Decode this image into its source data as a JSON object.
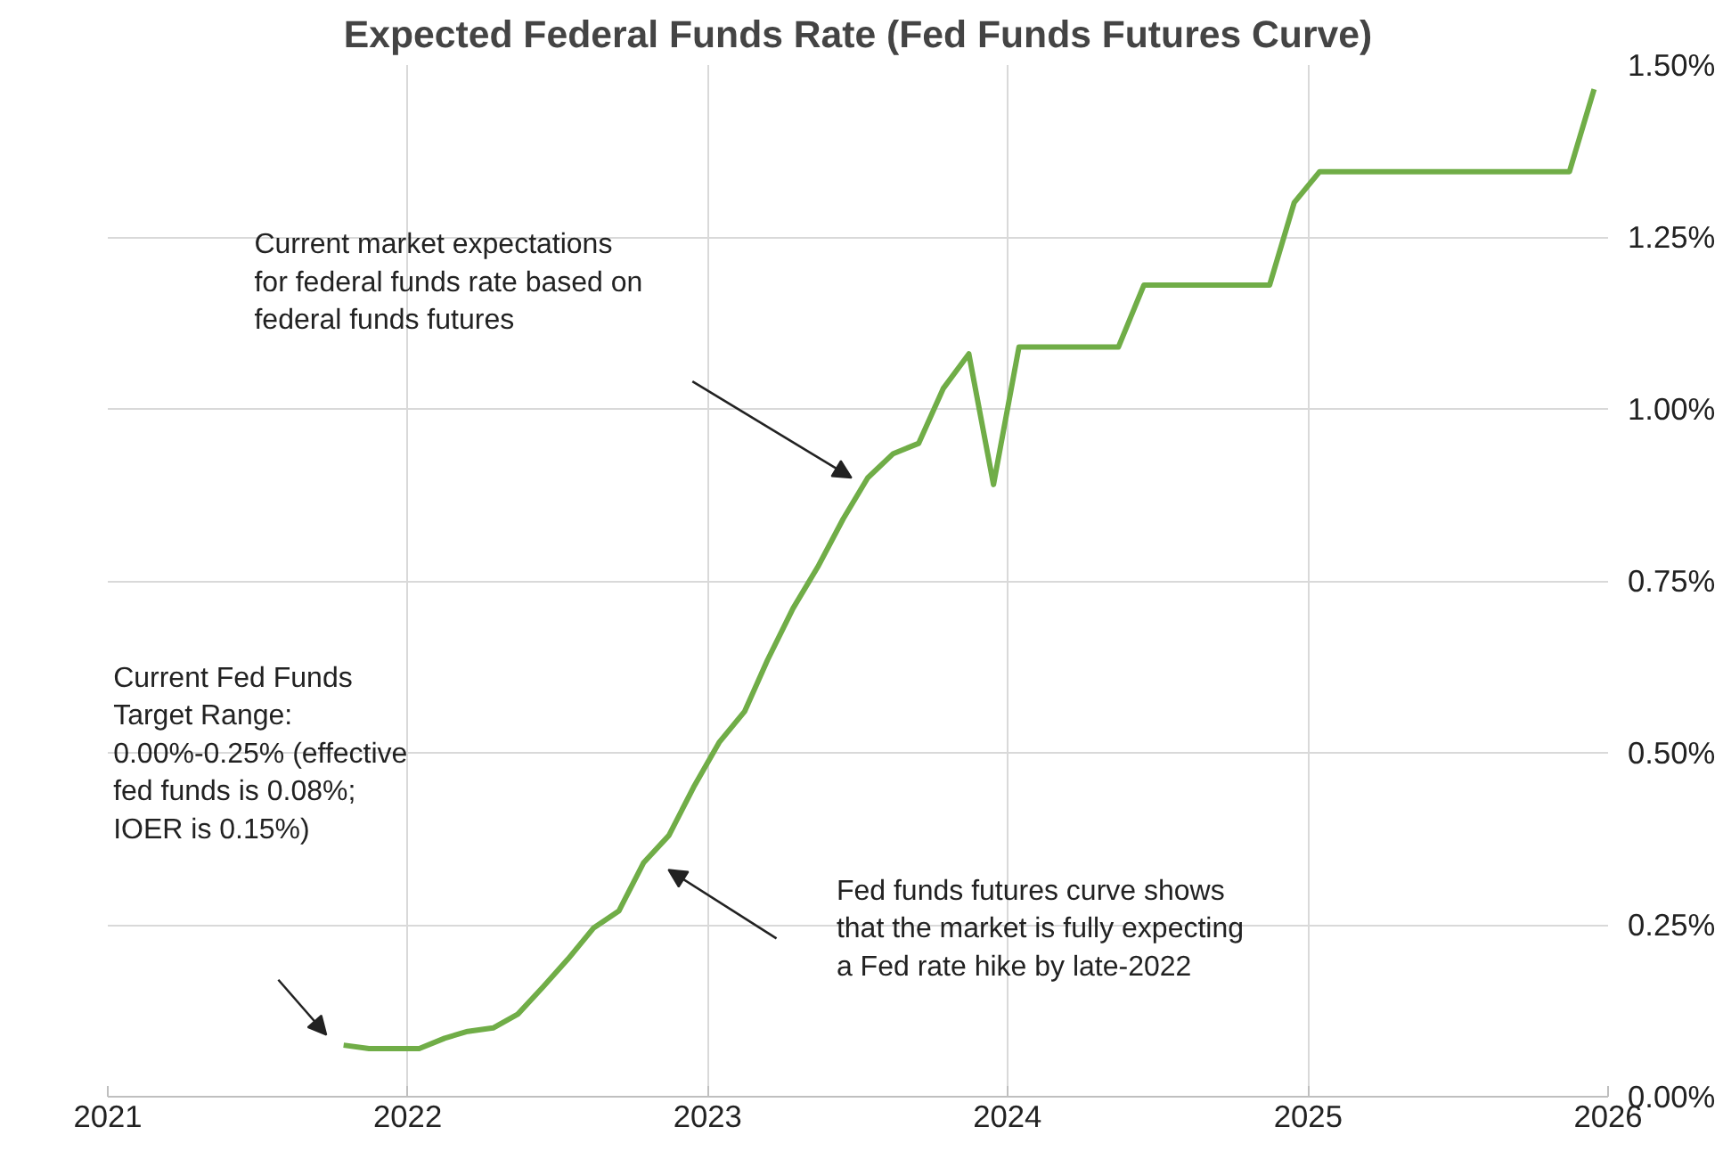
{
  "chart_data": {
    "type": "line",
    "title": "Expected Federal Funds Rate (Fed Funds Futures Curve)",
    "x": [
      "2021-10-15",
      "2021-11-15",
      "2021-12-15",
      "2022-01-15",
      "2022-02-15",
      "2022-03-15",
      "2022-04-15",
      "2022-05-15",
      "2022-06-15",
      "2022-07-15",
      "2022-08-15",
      "2022-09-15",
      "2022-10-15",
      "2022-11-15",
      "2022-12-15",
      "2023-01-15",
      "2023-02-15",
      "2023-03-15",
      "2023-04-15",
      "2023-05-15",
      "2023-06-15",
      "2023-07-15",
      "2023-08-15",
      "2023-09-15",
      "2023-10-15",
      "2023-11-15",
      "2023-12-15",
      "2024-01-15",
      "2024-02-15",
      "2024-03-15",
      "2024-04-15",
      "2024-05-15",
      "2024-06-15",
      "2024-07-15",
      "2024-08-15",
      "2024-09-15",
      "2024-10-15",
      "2024-11-15",
      "2024-12-15",
      "2025-01-15",
      "2025-02-15",
      "2025-03-15",
      "2025-04-15",
      "2025-05-15",
      "2025-06-15",
      "2025-07-15",
      "2025-08-15",
      "2025-09-15",
      "2025-10-15",
      "2025-11-15",
      "2025-12-15"
    ],
    "series": [
      {
        "color": "#70ad47",
        "values": [
          0.075,
          0.07,
          0.07,
          0.07,
          0.085,
          0.095,
          0.1,
          0.12,
          0.16,
          0.2,
          0.245,
          0.27,
          0.34,
          0.38,
          0.45,
          0.515,
          0.56,
          0.635,
          0.71,
          0.77,
          0.84,
          0.9,
          0.935,
          0.95,
          1.03,
          1.08,
          0.89,
          1.09,
          1.09,
          1.09,
          1.09,
          1.09,
          1.18,
          1.18,
          1.18,
          1.18,
          1.18,
          1.18,
          1.3,
          1.345,
          1.345,
          1.345,
          1.345,
          1.345,
          1.345,
          1.345,
          1.345,
          1.345,
          1.345,
          1.345,
          1.465
        ]
      }
    ],
    "xlim": [
      "2021",
      "2026"
    ],
    "xticks": [
      {
        "value": "2021",
        "label": "2021"
      },
      {
        "value": "2022",
        "label": "2022"
      },
      {
        "value": "2023",
        "label": "2023"
      },
      {
        "value": "2024",
        "label": "2024"
      },
      {
        "value": "2025",
        "label": "2025"
      },
      {
        "value": "2026",
        "label": "2026"
      }
    ],
    "ylim": [
      0,
      1.5
    ],
    "yticks": [
      {
        "value": 0,
        "label": "0.00%"
      },
      {
        "value": 0.25,
        "label": "0.25%"
      },
      {
        "value": 0.5,
        "label": "0.50%"
      },
      {
        "value": 0.75,
        "label": "0.75%"
      },
      {
        "value": 1.0,
        "label": "1.00%"
      },
      {
        "value": 1.25,
        "label": "1.25%"
      },
      {
        "value": 1.5,
        "label": "1.50%"
      }
    ],
    "grid": true,
    "marker": "none",
    "line_style": "solid",
    "annotations": [
      "Current market expectations\nfor federal funds rate based on\nfederal funds futures",
      "Current Fed Funds\nTarget Range:\n0.00%-0.25% (effective\nfed funds is 0.08%;\nIOER is 0.15%)",
      "Fed funds futures curve shows\nthat the market is fully expecting\na Fed rate hike by late-2022"
    ]
  }
}
